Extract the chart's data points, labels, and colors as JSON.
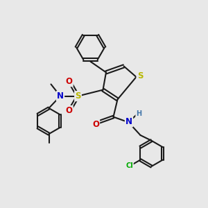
{
  "bg_color": "#e8e8e8",
  "bond_color": "#1a1a1a",
  "S_color": "#b8b800",
  "N_color": "#0000cc",
  "O_color": "#cc0000",
  "Cl_color": "#00aa00",
  "H_color": "#4477aa",
  "lw": 1.5,
  "fs": 8.5,
  "fs_small": 7.0,
  "xlim": [
    0,
    10
  ],
  "ylim": [
    0,
    10
  ]
}
